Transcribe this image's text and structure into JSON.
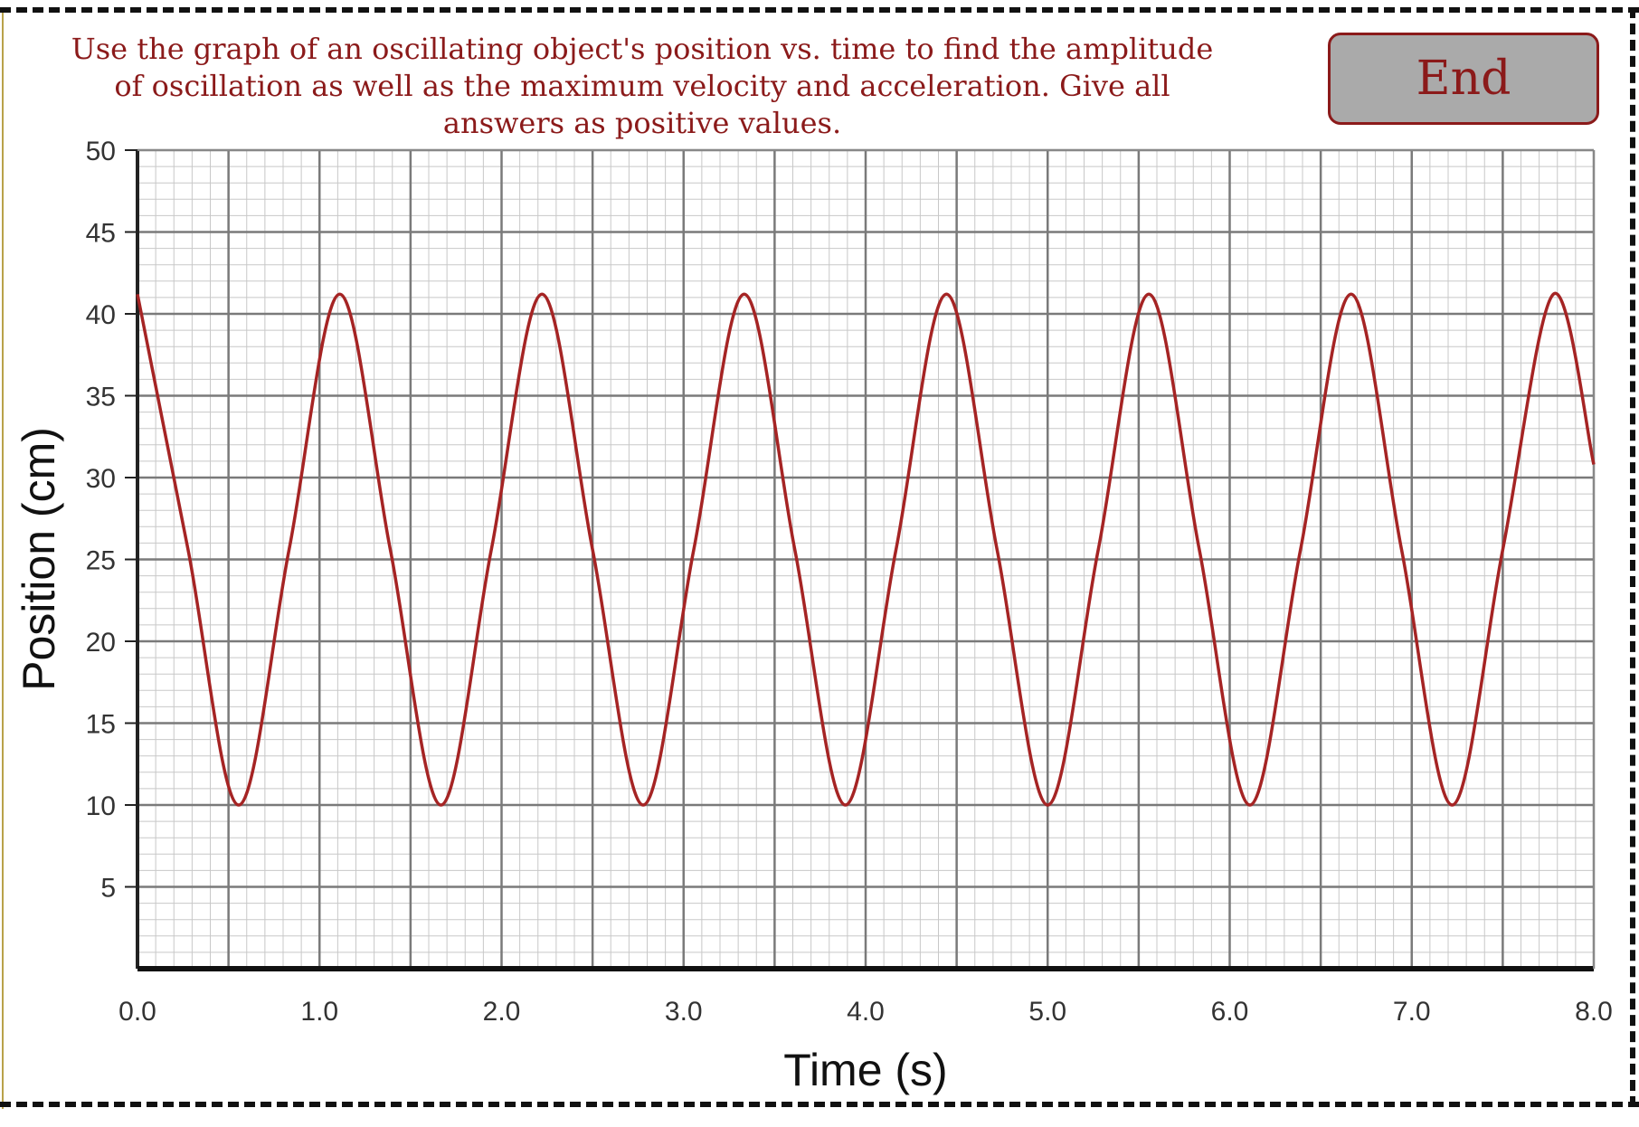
{
  "question": {
    "text": "Use the graph of an oscillating object's position vs. time to find the amplitude of oscillation as well as the maximum velocity and acceleration. Give all answers as positive values."
  },
  "controls": {
    "end_label": "End"
  },
  "colors": {
    "prompt_text": "#8b1a1a",
    "button_bg": "#aaaaaa",
    "button_border": "#8b1a1a",
    "curve": "#a52424",
    "major_grid": "#7a7a7a",
    "minor_grid": "#c8c8c8"
  },
  "chart_data": {
    "type": "line",
    "title": "",
    "xlabel": "Time (s)",
    "ylabel": "Position (cm)",
    "xlim": [
      0,
      8
    ],
    "ylim": [
      0,
      50
    ],
    "x_ticks": [
      "0.0",
      "1.0",
      "2.0",
      "3.0",
      "4.0",
      "5.0",
      "6.0",
      "7.0",
      "8.0"
    ],
    "y_ticks": [
      "5",
      "10",
      "15",
      "20",
      "25",
      "30",
      "35",
      "40",
      "45",
      "50"
    ],
    "grid": true,
    "major_grid_x_step": 0.5,
    "major_grid_y_step": 5,
    "minor_grid_x_step": 0.1,
    "minor_grid_y_step": 1,
    "series": [
      {
        "x": [
          0.0,
          0.278,
          0.556,
          0.833,
          1.111,
          1.389,
          1.667,
          1.944,
          2.222,
          2.5,
          2.778,
          3.056,
          3.333,
          3.611,
          3.889,
          4.167,
          4.444,
          4.722,
          5.0,
          5.278,
          5.556,
          5.833,
          6.111,
          6.389,
          6.667,
          6.944,
          7.222,
          7.5,
          7.778,
          8.0
        ],
        "y": [
          41.2,
          25.6,
          10.0,
          25.6,
          41.2,
          25.6,
          10.0,
          25.6,
          41.2,
          25.6,
          10.0,
          25.6,
          41.2,
          25.6,
          10.0,
          25.6,
          41.2,
          25.6,
          10.0,
          25.6,
          41.2,
          25.6,
          10.0,
          25.6,
          41.2,
          25.6,
          10.0,
          25.6,
          41.2,
          30.8
        ]
      }
    ]
  }
}
